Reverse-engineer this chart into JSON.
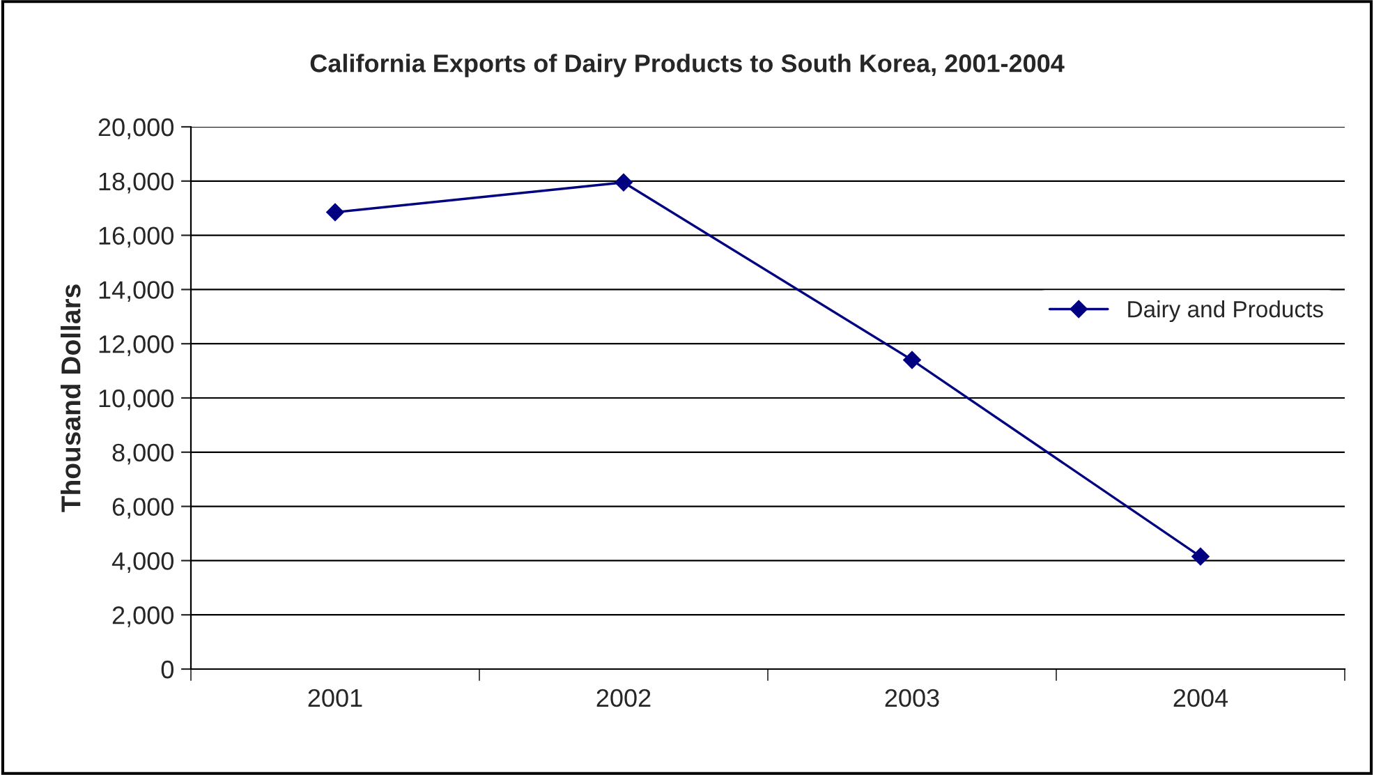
{
  "chart_data": {
    "type": "line",
    "title": "California Exports of Dairy Products to South Korea, 2001-2004",
    "ylabel": "Thousand Dollars",
    "categories": [
      "2001",
      "2002",
      "2003",
      "2004"
    ],
    "series": [
      {
        "name": "Dairy and Products",
        "color": "#000080",
        "values": [
          16850,
          17950,
          11400,
          4150
        ]
      }
    ],
    "ylim": [
      0,
      20000
    ],
    "yticks": [
      {
        "value": 0,
        "label": "0"
      },
      {
        "value": 2000,
        "label": "2,000"
      },
      {
        "value": 4000,
        "label": "4,000"
      },
      {
        "value": 6000,
        "label": "6,000"
      },
      {
        "value": 8000,
        "label": "8,000"
      },
      {
        "value": 10000,
        "label": "10,000"
      },
      {
        "value": 12000,
        "label": "12,000"
      },
      {
        "value": 14000,
        "label": "14,000"
      },
      {
        "value": 16000,
        "label": "16,000"
      },
      {
        "value": 18000,
        "label": "18,000"
      },
      {
        "value": 20000,
        "label": "20,000"
      }
    ],
    "grid": "y",
    "legend": "right",
    "marker": "diamond",
    "line_style": "solid"
  }
}
